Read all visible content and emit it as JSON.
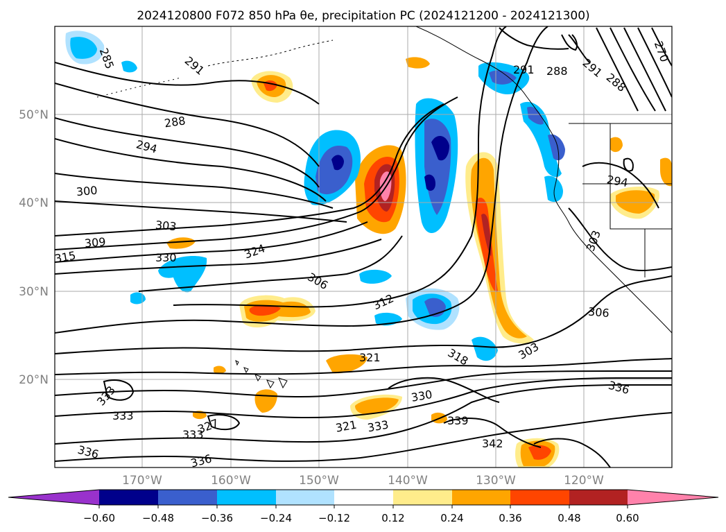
{
  "title": "2024120800 F072 850 hPa θe, precipitation PC (2024121200 - 2024121300)",
  "lat_labels": [
    "50°N",
    "40°N",
    "30°N",
    "20°N"
  ],
  "lon_labels": [
    "170°W",
    "160°W",
    "150°W",
    "140°W",
    "130°W",
    "120°W"
  ],
  "colorbar": {
    "ticks": [
      "−0.60",
      "−0.48",
      "−0.36",
      "−0.24",
      "−0.12",
      "0.12",
      "0.24",
      "0.36",
      "0.48",
      "0.60"
    ],
    "colors": [
      "#9932CC",
      "#00008B",
      "#3A5FCD",
      "#00BFFF",
      "#B0E2FF",
      "#FFFFFF",
      "#FFEC8B",
      "#FFA500",
      "#FF4500",
      "#B22222",
      "#FF82AB"
    ]
  },
  "contour_labels": [
    "285",
    "291",
    "288",
    "294",
    "300",
    "303",
    "309",
    "315",
    "330",
    "324",
    "306",
    "312",
    "318",
    "321",
    "327",
    "333",
    "336",
    "339",
    "342",
    "303",
    "306",
    "330",
    "336",
    "291",
    "288",
    "294",
    "270",
    "303"
  ]
}
